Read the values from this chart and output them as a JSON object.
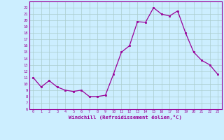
{
  "x": [
    0,
    1,
    2,
    3,
    4,
    5,
    6,
    7,
    8,
    9,
    10,
    11,
    12,
    13,
    14,
    15,
    16,
    17,
    18,
    19,
    20,
    21,
    22,
    23
  ],
  "y": [
    11,
    9.5,
    10.5,
    9.5,
    9,
    8.8,
    9,
    8,
    8,
    8.2,
    11.5,
    15,
    16,
    19.8,
    19.7,
    22,
    21,
    20.7,
    21.5,
    18,
    15,
    13.7,
    13,
    11.5
  ],
  "line_color": "#990099",
  "marker_color": "#990099",
  "bg_color": "#cceeff",
  "grid_color": "#aacccc",
  "xlabel": "Windchill (Refroidissement éolien,°C)",
  "xlabel_color": "#990099",
  "tick_color": "#990099",
  "ylim": [
    6,
    23
  ],
  "xlim": [
    -0.5,
    23.5
  ],
  "yticks": [
    6,
    7,
    8,
    9,
    10,
    11,
    12,
    13,
    14,
    15,
    16,
    17,
    18,
    19,
    20,
    21,
    22
  ],
  "xticks": [
    0,
    1,
    2,
    3,
    4,
    5,
    6,
    7,
    8,
    9,
    10,
    11,
    12,
    13,
    14,
    15,
    16,
    17,
    18,
    19,
    20,
    21,
    22,
    23
  ],
  "figsize": [
    3.2,
    2.0
  ],
  "dpi": 100
}
